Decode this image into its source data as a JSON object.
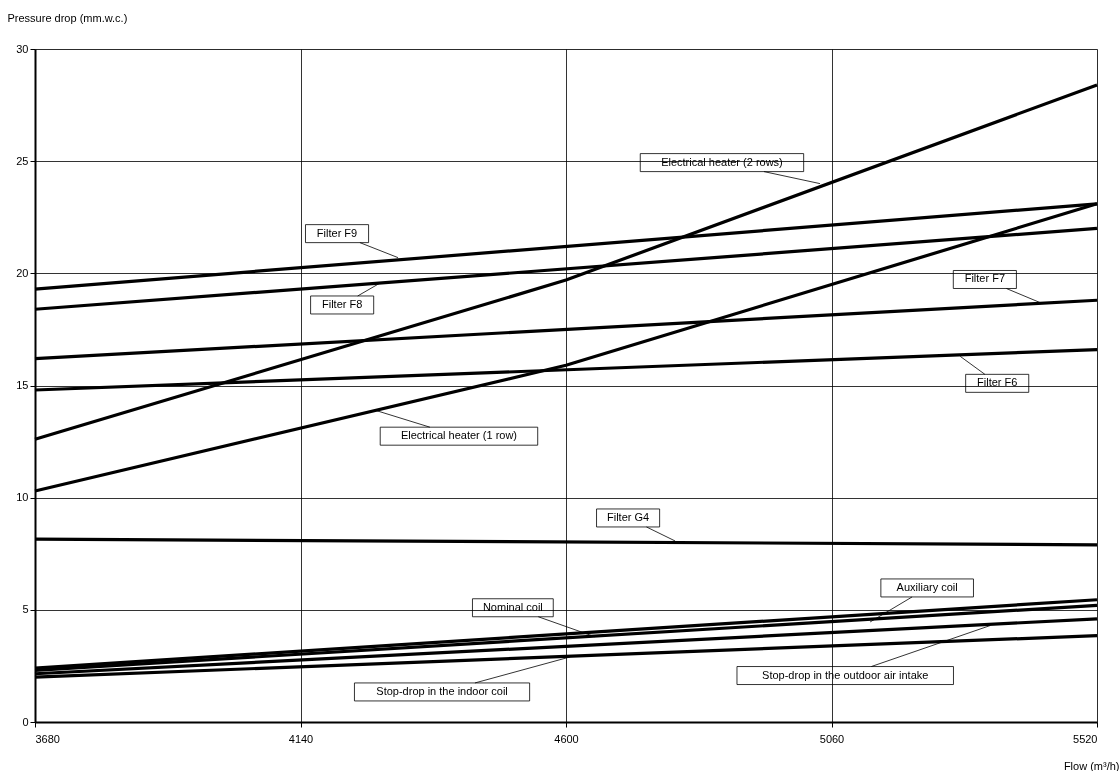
{
  "chart_data": {
    "type": "line",
    "xlabel": "Flow (m³/h)",
    "ylabel": "Pressure drop (mm.w.c.)",
    "xlim": [
      3680,
      5520
    ],
    "ylim": [
      0,
      30
    ],
    "xticks": [
      3680,
      4140,
      4600,
      5060,
      5520
    ],
    "yticks": [
      0,
      5,
      10,
      15,
      20,
      25,
      30
    ],
    "grid": true,
    "legend": false,
    "marker": "none",
    "line_style": "solid",
    "series": [
      {
        "color": "#000000",
        "x": [
          3680,
          4600,
          5520
        ],
        "values": [
          12.6,
          19.7,
          28.4
        ]
      },
      {
        "color": "#000000",
        "x": [
          3680,
          4600,
          5520
        ],
        "values": [
          10.3,
          15.9,
          23.1
        ]
      },
      {
        "color": "#000000",
        "x": [
          3680,
          5520
        ],
        "values": [
          19.3,
          23.1
        ]
      },
      {
        "color": "#000000",
        "x": [
          3680,
          5520
        ],
        "values": [
          18.4,
          22.0
        ]
      },
      {
        "color": "#000000",
        "x": [
          3680,
          5520
        ],
        "values": [
          16.2,
          18.8
        ]
      },
      {
        "color": "#000000",
        "x": [
          3680,
          5520
        ],
        "values": [
          14.8,
          16.6
        ]
      },
      {
        "color": "#000000",
        "x": [
          3680,
          5520
        ],
        "values": [
          8.15,
          7.9
        ]
      },
      {
        "color": "#000000",
        "x": [
          3680,
          5520
        ],
        "values": [
          2.4,
          5.45
        ]
      },
      {
        "color": "#000000",
        "x": [
          3680,
          5520
        ],
        "values": [
          2.3,
          5.2
        ]
      },
      {
        "color": "#000000",
        "x": [
          3680,
          5520
        ],
        "values": [
          2.15,
          4.6
        ]
      },
      {
        "color": "#000000",
        "x": [
          3680,
          5520
        ],
        "values": [
          2.0,
          3.85
        ]
      }
    ],
    "annotations": [
      {
        "text": "Electrical heater (2 rows)",
        "x": 5040,
        "y": 24.0
      },
      {
        "text": "Filter F9",
        "x": 4309,
        "y": 20.7
      },
      {
        "text": "Filter F8",
        "x": 4278,
        "y": 19.57
      },
      {
        "text": "Filter F7",
        "x": 5421,
        "y": 18.7
      },
      {
        "text": "Filter F6",
        "x": 5283,
        "y": 16.3
      },
      {
        "text": "Electrical heater (1 row)",
        "x": 4269,
        "y": 13.9
      },
      {
        "text": "Filter G4",
        "x": 4789,
        "y": 8.07
      },
      {
        "text": "Nominal coil",
        "x": 4650,
        "y": 3.8
      },
      {
        "text": "Auxiliary coil",
        "x": 5127,
        "y": 4.46
      },
      {
        "text": "Stop-drop in the indoor coil",
        "x": 4607,
        "y": 2.9
      },
      {
        "text": "Stop-drop in the outdoor air intake",
        "x": 5335,
        "y": 4.3
      }
    ]
  }
}
